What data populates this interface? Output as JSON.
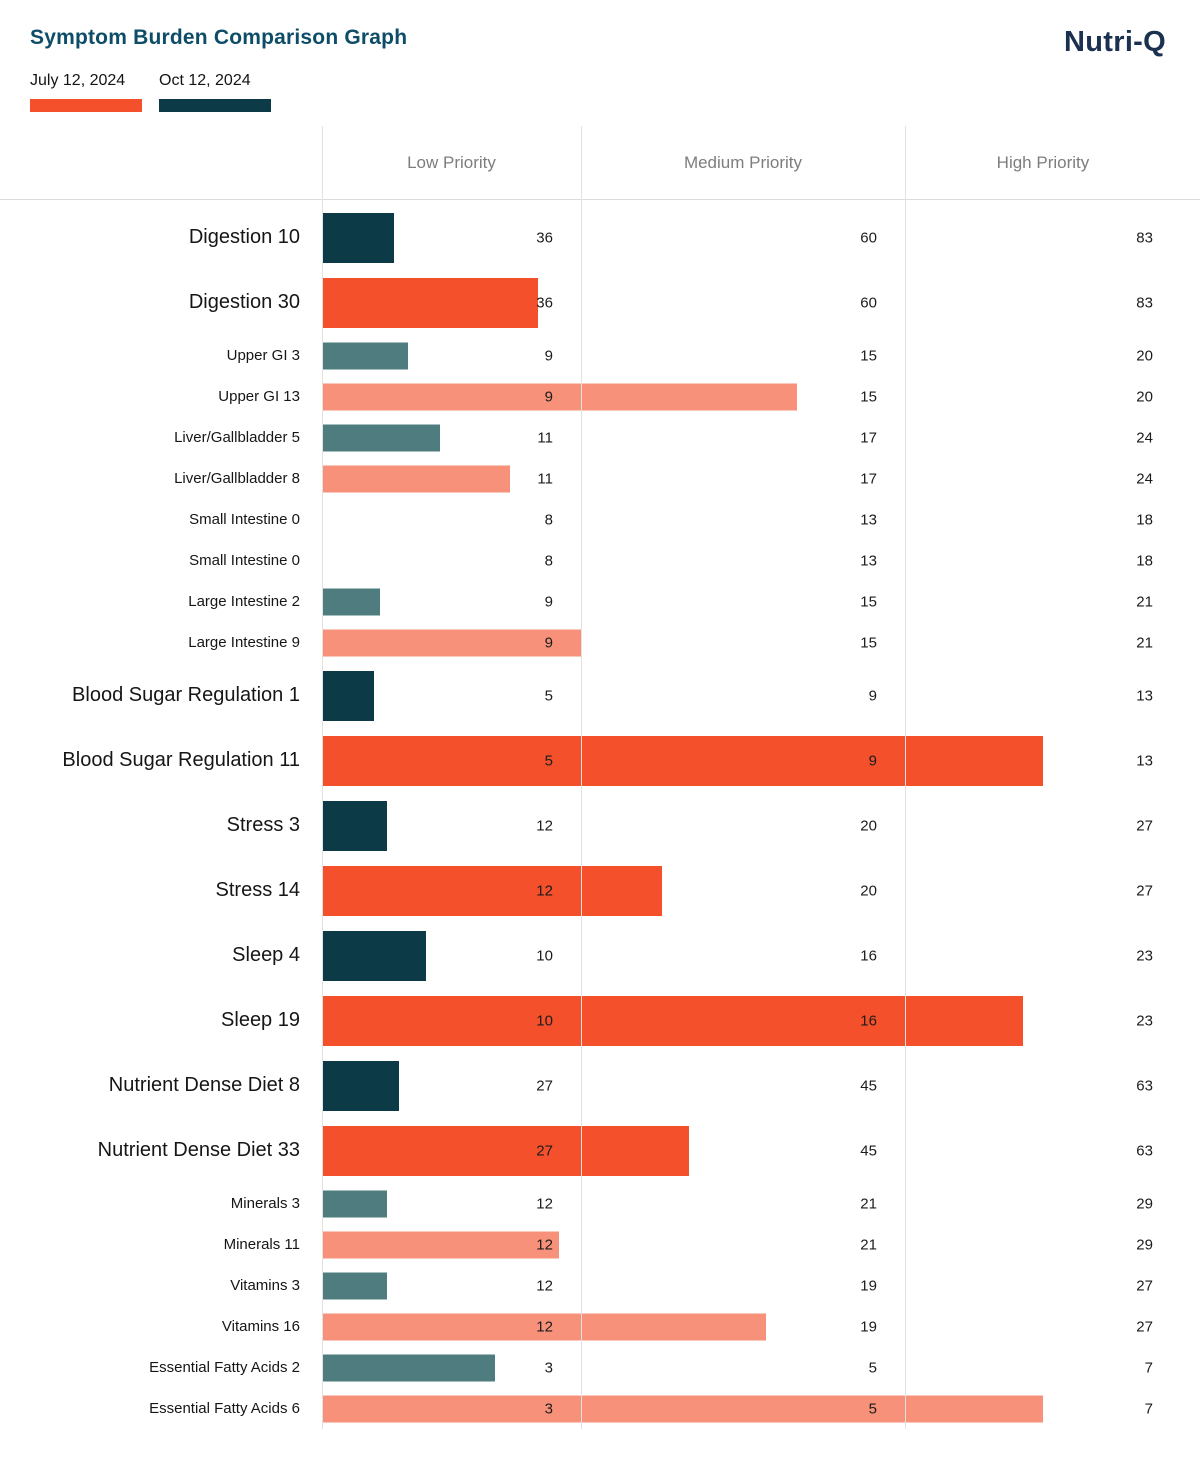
{
  "header": {
    "title": "Symptom Burden Comparison Graph",
    "logo": "Nutri-Q"
  },
  "chart_data": {
    "type": "bar",
    "orientation": "horizontal",
    "title": "Symptom Burden Comparison Graph",
    "priority_columns": [
      "Low Priority",
      "Medium Priority",
      "High Priority"
    ],
    "legend_position": "top-left",
    "series_legend": [
      {
        "id": "july",
        "label": "July 12, 2024",
        "color_main": "#f4502b",
        "color_sub": "#f7917a"
      },
      {
        "id": "oct",
        "label": "Oct 12, 2024",
        "color_main": "#0c3a47",
        "color_sub": "#4f7d7f"
      }
    ],
    "groups": [
      {
        "category": "Digestion",
        "size": "main",
        "thresholds": [
          36,
          60,
          83
        ],
        "rows": [
          {
            "label": "Digestion 10",
            "series": "oct",
            "value": 10
          },
          {
            "label": "Digestion 30",
            "series": "july",
            "value": 30
          }
        ]
      },
      {
        "category": "Upper GI",
        "size": "sub",
        "thresholds": [
          9,
          15,
          20
        ],
        "rows": [
          {
            "label": "Upper GI 3",
            "series": "oct",
            "value": 3
          },
          {
            "label": "Upper GI 13",
            "series": "july",
            "value": 13
          }
        ]
      },
      {
        "category": "Liver/Gallbladder",
        "size": "sub",
        "thresholds": [
          11,
          17,
          24
        ],
        "rows": [
          {
            "label": "Liver/Gallbladder 5",
            "series": "oct",
            "value": 5
          },
          {
            "label": "Liver/Gallbladder 8",
            "series": "july",
            "value": 8
          }
        ]
      },
      {
        "category": "Small Intestine",
        "size": "sub",
        "thresholds": [
          8,
          13,
          18
        ],
        "rows": [
          {
            "label": "Small Intestine 0",
            "series": "oct",
            "value": 0
          },
          {
            "label": "Small Intestine 0",
            "series": "july",
            "value": 0
          }
        ]
      },
      {
        "category": "Large Intestine",
        "size": "sub",
        "thresholds": [
          9,
          15,
          21
        ],
        "rows": [
          {
            "label": "Large Intestine 2",
            "series": "oct",
            "value": 2
          },
          {
            "label": "Large Intestine 9",
            "series": "july",
            "value": 9
          }
        ]
      },
      {
        "category": "Blood Sugar Regulation",
        "size": "main",
        "thresholds": [
          5,
          9,
          13
        ],
        "rows": [
          {
            "label": "Blood Sugar Regulation 1",
            "series": "oct",
            "value": 1
          },
          {
            "label": "Blood Sugar Regulation 11",
            "series": "july",
            "value": 11
          }
        ]
      },
      {
        "category": "Stress",
        "size": "main",
        "thresholds": [
          12,
          20,
          27
        ],
        "rows": [
          {
            "label": "Stress 3",
            "series": "oct",
            "value": 3
          },
          {
            "label": "Stress 14",
            "series": "july",
            "value": 14
          }
        ]
      },
      {
        "category": "Sleep",
        "size": "main",
        "thresholds": [
          10,
          16,
          23
        ],
        "rows": [
          {
            "label": "Sleep 4",
            "series": "oct",
            "value": 4
          },
          {
            "label": "Sleep 19",
            "series": "july",
            "value": 19
          }
        ]
      },
      {
        "category": "Nutrient Dense Diet",
        "size": "main",
        "thresholds": [
          27,
          45,
          63
        ],
        "rows": [
          {
            "label": "Nutrient Dense Diet 8",
            "series": "oct",
            "value": 8
          },
          {
            "label": "Nutrient Dense Diet 33",
            "series": "july",
            "value": 33
          }
        ]
      },
      {
        "category": "Minerals",
        "size": "sub",
        "thresholds": [
          12,
          21,
          29
        ],
        "rows": [
          {
            "label": "Minerals 3",
            "series": "oct",
            "value": 3
          },
          {
            "label": "Minerals 11",
            "series": "july",
            "value": 11
          }
        ]
      },
      {
        "category": "Vitamins",
        "size": "sub",
        "thresholds": [
          12,
          19,
          27
        ],
        "rows": [
          {
            "label": "Vitamins 3",
            "series": "oct",
            "value": 3
          },
          {
            "label": "Vitamins 16",
            "series": "july",
            "value": 16
          }
        ]
      },
      {
        "category": "Essential Fatty Acids",
        "size": "sub",
        "thresholds": [
          3,
          5,
          7
        ],
        "rows": [
          {
            "label": "Essential Fatty Acids 2",
            "series": "oct",
            "value": 2
          },
          {
            "label": "Essential Fatty Acids 6",
            "series": "july",
            "value": 6
          }
        ]
      }
    ]
  }
}
